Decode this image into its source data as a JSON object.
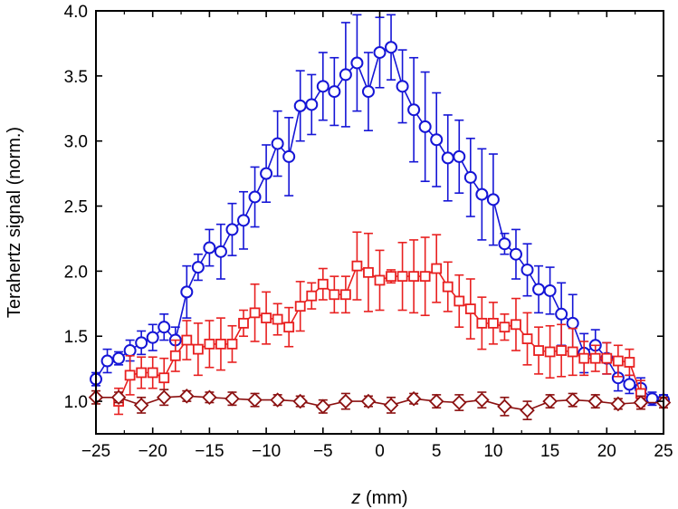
{
  "chart_data": {
    "type": "line",
    "title": "",
    "xlabel_var": "z",
    "xlabel_unit": " (mm)",
    "ylabel": "Terahertz signal (norm.)",
    "xlim": [
      -25,
      25
    ],
    "ylim": [
      0.75,
      4.0
    ],
    "xticks": [
      -25,
      -20,
      -15,
      -10,
      -5,
      0,
      5,
      10,
      15,
      20,
      25
    ],
    "xtick_labels": [
      "−25",
      "−20",
      "−15",
      "−10",
      "−5",
      "0",
      "5",
      "10",
      "15",
      "20",
      "25"
    ],
    "yticks": [
      1.0,
      1.5,
      2.0,
      2.5,
      3.0,
      3.5,
      4.0
    ],
    "ytick_labels": [
      "1.0",
      "1.5",
      "2.0",
      "2.5",
      "3.0",
      "3.5",
      "4.0"
    ],
    "grid": false,
    "series": [
      {
        "name": "circles",
        "marker": "circle",
        "color": "#1515d6",
        "x": [
          -25,
          -24,
          -23,
          -22,
          -21,
          -20,
          -19,
          -18,
          -17,
          -16,
          -15,
          -14,
          -13,
          -12,
          -11,
          -10,
          -9,
          -8,
          -7,
          -6,
          -5,
          -4,
          -3,
          -2,
          -1,
          0,
          1,
          2,
          3,
          4,
          5,
          6,
          7,
          8,
          9,
          10,
          11,
          12,
          13,
          14,
          15,
          16,
          17,
          18,
          19,
          20,
          21,
          22,
          23,
          24,
          25
        ],
        "y": [
          1.17,
          1.31,
          1.33,
          1.39,
          1.45,
          1.49,
          1.57,
          1.47,
          1.84,
          2.03,
          2.18,
          2.15,
          2.32,
          2.39,
          2.57,
          2.75,
          2.98,
          2.88,
          3.27,
          3.28,
          3.42,
          3.38,
          3.51,
          3.6,
          3.38,
          3.68,
          3.72,
          3.42,
          3.24,
          3.11,
          3.01,
          2.87,
          2.88,
          2.72,
          2.59,
          2.55,
          2.21,
          2.13,
          2.01,
          1.86,
          1.85,
          1.67,
          1.6,
          1.37,
          1.43,
          1.33,
          1.18,
          1.13,
          1.1,
          1.02,
          1.01
        ],
        "err": [
          0.05,
          0.09,
          0.05,
          0.08,
          0.09,
          0.1,
          0.1,
          0.1,
          0.2,
          0.1,
          0.14,
          0.21,
          0.2,
          0.22,
          0.23,
          0.22,
          0.25,
          0.3,
          0.27,
          0.23,
          0.26,
          0.26,
          0.4,
          0.37,
          0.3,
          0.27,
          0.25,
          0.28,
          0.4,
          0.42,
          0.36,
          0.33,
          0.28,
          0.3,
          0.35,
          0.35,
          0.08,
          0.19,
          0.2,
          0.18,
          0.18,
          0.24,
          0.22,
          0.15,
          0.12,
          0.12,
          0.1,
          0.07,
          0.08,
          0.05,
          0.04
        ]
      },
      {
        "name": "squares",
        "marker": "square",
        "color": "#e82020",
        "x": [
          -23,
          -22,
          -21,
          -20,
          -19,
          -18,
          -17,
          -16,
          -15,
          -14,
          -13,
          -12,
          -11,
          -10,
          -9,
          -8,
          -7,
          -6,
          -5,
          -4,
          -3,
          -2,
          -1,
          0,
          1,
          2,
          3,
          4,
          5,
          6,
          7,
          8,
          9,
          10,
          11,
          12,
          13,
          14,
          15,
          16,
          17,
          18,
          19,
          20,
          21,
          22,
          23
        ],
        "y": [
          1.0,
          1.2,
          1.22,
          1.22,
          1.18,
          1.35,
          1.47,
          1.4,
          1.44,
          1.44,
          1.44,
          1.6,
          1.68,
          1.64,
          1.63,
          1.57,
          1.73,
          1.81,
          1.9,
          1.82,
          1.82,
          2.04,
          1.99,
          1.93,
          1.96,
          1.96,
          1.96,
          1.96,
          2.02,
          1.88,
          1.77,
          1.71,
          1.6,
          1.6,
          1.57,
          1.59,
          1.48,
          1.39,
          1.38,
          1.39,
          1.38,
          1.33,
          1.33,
          1.33,
          1.31,
          1.3,
          1.06
        ],
        "err": [
          0.1,
          0.15,
          0.12,
          0.12,
          0.15,
          0.12,
          0.15,
          0.2,
          0.18,
          0.2,
          0.14,
          0.1,
          0.22,
          0.2,
          0.12,
          0.15,
          0.19,
          0.1,
          0.12,
          0.14,
          0.14,
          0.26,
          0.3,
          0.23,
          0.05,
          0.26,
          0.28,
          0.3,
          0.26,
          0.19,
          0.2,
          0.23,
          0.2,
          0.16,
          0.1,
          0.2,
          0.2,
          0.18,
          0.2,
          0.2,
          0.18,
          0.13,
          0.1,
          0.12,
          0.12,
          0.1,
          0.1
        ]
      },
      {
        "name": "diamonds",
        "marker": "diamond",
        "color": "#8b1010",
        "x": [
          -25,
          -23,
          -21,
          -19,
          -17,
          -15,
          -13,
          -11,
          -9,
          -7,
          -5,
          -3,
          -1,
          1,
          3,
          5,
          7,
          9,
          11,
          13,
          15,
          17,
          19,
          21,
          23,
          25
        ],
        "y": [
          1.03,
          1.03,
          0.97,
          1.03,
          1.04,
          1.03,
          1.02,
          1.01,
          1.01,
          1.0,
          0.96,
          1.0,
          1.0,
          0.97,
          1.02,
          1.0,
          0.99,
          1.01,
          0.96,
          0.93,
          1.0,
          1.01,
          1.0,
          0.98,
          0.99,
          0.99
        ],
        "err": [
          0.05,
          0.04,
          0.06,
          0.06,
          0.04,
          0.04,
          0.05,
          0.05,
          0.04,
          0.04,
          0.05,
          0.06,
          0.04,
          0.06,
          0.04,
          0.05,
          0.06,
          0.06,
          0.07,
          0.07,
          0.05,
          0.05,
          0.05,
          0.04,
          0.05,
          0.04
        ]
      }
    ]
  }
}
